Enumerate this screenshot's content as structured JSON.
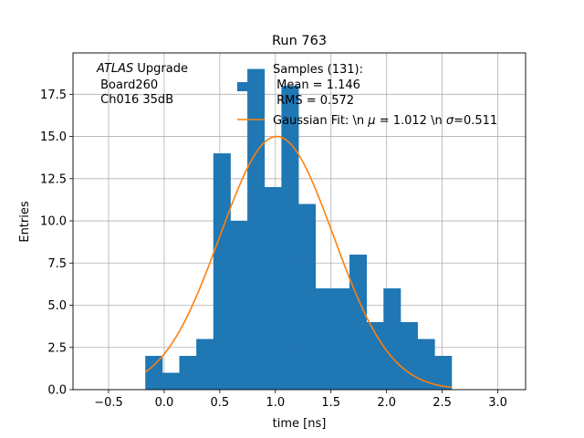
{
  "chart_data": {
    "type": "bar",
    "title": "Run 763",
    "xlabel": "time [ns]",
    "ylabel": "Entries",
    "xlim": [
      -0.82,
      3.25
    ],
    "ylim": [
      0,
      19.95
    ],
    "grid": true,
    "xticks": [
      -0.5,
      0.0,
      0.5,
      1.0,
      1.5,
      2.0,
      2.5,
      3.0
    ],
    "xtick_labels": [
      "−0.5",
      "0.0",
      "0.5",
      "1.0",
      "1.5",
      "2.0",
      "2.5",
      "3.0"
    ],
    "yticks": [
      0.0,
      2.5,
      5.0,
      7.5,
      10.0,
      12.5,
      15.0,
      17.5
    ],
    "ytick_labels": [
      "0.0",
      "2.5",
      "5.0",
      "7.5",
      "10.0",
      "12.5",
      "15.0",
      "17.5"
    ],
    "histogram": {
      "name": "Samples (131)",
      "color": "#1f77b4",
      "bin_edges": [
        -0.17,
        -0.017,
        0.136,
        0.289,
        0.442,
        0.595,
        0.748,
        0.901,
        1.054,
        1.207,
        1.36,
        1.513,
        1.666,
        1.819,
        1.972,
        2.125,
        2.278,
        2.431,
        2.584
      ],
      "values": [
        2,
        1,
        2,
        3,
        14,
        10,
        19,
        12,
        18,
        11,
        6,
        6,
        8,
        4,
        6,
        4,
        3,
        2
      ]
    },
    "fit": {
      "name": "Gaussian Fit",
      "color": "#ff7f0e",
      "amplitude": 15.0,
      "mu": 1.012,
      "sigma": 0.511,
      "x_range": [
        -0.17,
        2.584
      ]
    },
    "legend": {
      "placement": "top-center",
      "samples_lines": [
        "Samples (131):",
        " Mean = 1.146",
        " RMS = 0.572"
      ],
      "fit_label": "Gaussian Fit: \\n $\\mu$ = 1.012 \\n $\\sigma$=0.511"
    },
    "annotation": {
      "italic": "ATLAS",
      "line1_rest": " Upgrade",
      "line2": " Board260",
      "line3": " Ch016 35dB"
    }
  }
}
